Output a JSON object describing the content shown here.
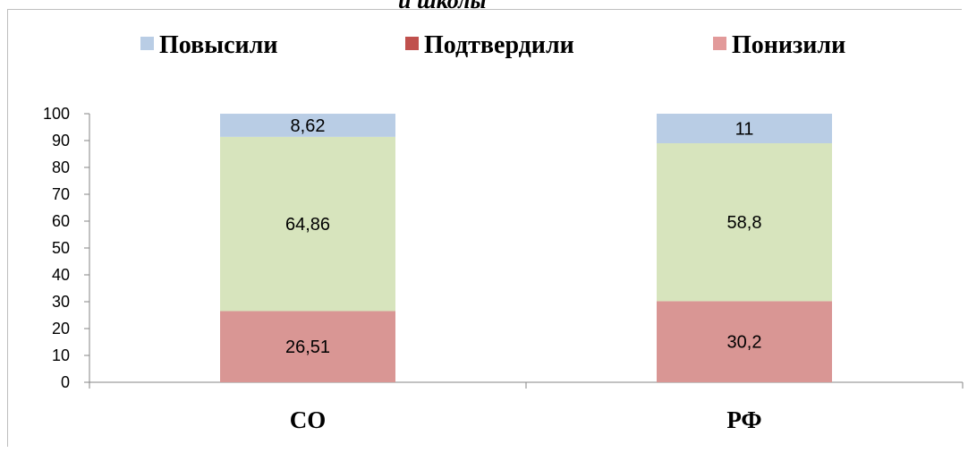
{
  "header": {
    "cut_title": "и школы"
  },
  "chart_data": {
    "type": "bar",
    "stacked": true,
    "categories": [
      "СО",
      "РФ"
    ],
    "series": [
      {
        "name": "Понизили",
        "values": [
          26.51,
          30.2
        ],
        "labels": [
          "26,51",
          "30,2"
        ],
        "color": "#d99694"
      },
      {
        "name": "Подтвердили",
        "values": [
          64.86,
          58.8
        ],
        "labels": [
          "64,86",
          "58,8"
        ],
        "color": "#d7e4bd"
      },
      {
        "name": "Повысили",
        "values": [
          8.62,
          11
        ],
        "labels": [
          "8,62",
          "11"
        ],
        "color": "#b9cde5"
      }
    ],
    "legend": [
      {
        "name": "Повысили",
        "color": "#b9cde5"
      },
      {
        "name": "Подтвердили",
        "color": "#c0504d"
      },
      {
        "name": "Понизили",
        "color": "#e29a9a"
      }
    ],
    "legend_position": "top",
    "ylim": [
      0,
      100
    ],
    "yticks": [
      0,
      10,
      20,
      30,
      40,
      50,
      60,
      70,
      80,
      90,
      100
    ],
    "grid": false
  }
}
